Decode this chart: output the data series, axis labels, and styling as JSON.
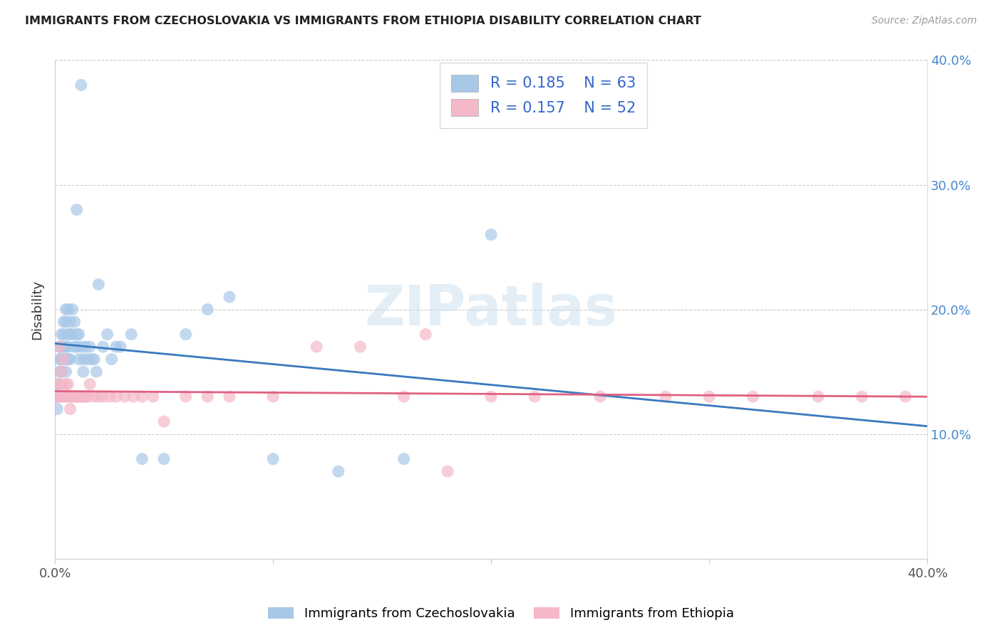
{
  "title": "IMMIGRANTS FROM CZECHOSLOVAKIA VS IMMIGRANTS FROM ETHIOPIA DISABILITY CORRELATION CHART",
  "source": "Source: ZipAtlas.com",
  "ylabel": "Disability",
  "xlim": [
    0.0,
    0.4
  ],
  "ylim": [
    0.0,
    0.4
  ],
  "czech_color": "#a8c8e8",
  "ethiopia_color": "#f4b8c8",
  "czech_line_color": "#3a7abf",
  "ethiopia_line_color": "#e06080",
  "R_czech": 0.185,
  "N_czech": 63,
  "R_ethiopia": 0.157,
  "N_ethiopia": 52,
  "watermark": "ZIPatlas",
  "czech_x": [
    0.001,
    0.001,
    0.001,
    0.002,
    0.002,
    0.002,
    0.002,
    0.002,
    0.003,
    0.003,
    0.003,
    0.003,
    0.004,
    0.004,
    0.004,
    0.004,
    0.005,
    0.005,
    0.005,
    0.005,
    0.005,
    0.006,
    0.006,
    0.006,
    0.006,
    0.007,
    0.007,
    0.007,
    0.008,
    0.008,
    0.009,
    0.009,
    0.01,
    0.01,
    0.011,
    0.011,
    0.012,
    0.013,
    0.013,
    0.014,
    0.015,
    0.016,
    0.017,
    0.018,
    0.019,
    0.02,
    0.022,
    0.024,
    0.026,
    0.028,
    0.03,
    0.035,
    0.04,
    0.05,
    0.06,
    0.07,
    0.08,
    0.1,
    0.13,
    0.16,
    0.2,
    0.012,
    0.01
  ],
  "czech_y": [
    0.14,
    0.13,
    0.12,
    0.17,
    0.16,
    0.15,
    0.14,
    0.13,
    0.18,
    0.17,
    0.16,
    0.15,
    0.19,
    0.18,
    0.17,
    0.16,
    0.2,
    0.19,
    0.17,
    0.16,
    0.15,
    0.2,
    0.18,
    0.17,
    0.16,
    0.19,
    0.18,
    0.16,
    0.2,
    0.18,
    0.19,
    0.17,
    0.18,
    0.17,
    0.18,
    0.16,
    0.17,
    0.16,
    0.15,
    0.17,
    0.16,
    0.17,
    0.16,
    0.16,
    0.15,
    0.22,
    0.17,
    0.18,
    0.16,
    0.17,
    0.17,
    0.18,
    0.08,
    0.08,
    0.18,
    0.2,
    0.21,
    0.08,
    0.07,
    0.08,
    0.26,
    0.38,
    0.28
  ],
  "ethiopia_x": [
    0.001,
    0.001,
    0.002,
    0.002,
    0.003,
    0.003,
    0.003,
    0.004,
    0.004,
    0.005,
    0.005,
    0.006,
    0.006,
    0.007,
    0.007,
    0.008,
    0.009,
    0.01,
    0.011,
    0.012,
    0.013,
    0.014,
    0.015,
    0.016,
    0.018,
    0.02,
    0.022,
    0.025,
    0.028,
    0.032,
    0.036,
    0.04,
    0.045,
    0.05,
    0.06,
    0.07,
    0.08,
    0.1,
    0.12,
    0.14,
    0.16,
    0.18,
    0.2,
    0.22,
    0.25,
    0.28,
    0.3,
    0.32,
    0.35,
    0.37,
    0.39,
    0.17
  ],
  "ethiopia_y": [
    0.13,
    0.14,
    0.13,
    0.17,
    0.13,
    0.14,
    0.15,
    0.13,
    0.16,
    0.13,
    0.14,
    0.13,
    0.14,
    0.13,
    0.12,
    0.13,
    0.13,
    0.13,
    0.13,
    0.13,
    0.13,
    0.13,
    0.13,
    0.14,
    0.13,
    0.13,
    0.13,
    0.13,
    0.13,
    0.13,
    0.13,
    0.13,
    0.13,
    0.11,
    0.13,
    0.13,
    0.13,
    0.13,
    0.17,
    0.17,
    0.13,
    0.07,
    0.13,
    0.13,
    0.13,
    0.13,
    0.13,
    0.13,
    0.13,
    0.13,
    0.13,
    0.18
  ]
}
